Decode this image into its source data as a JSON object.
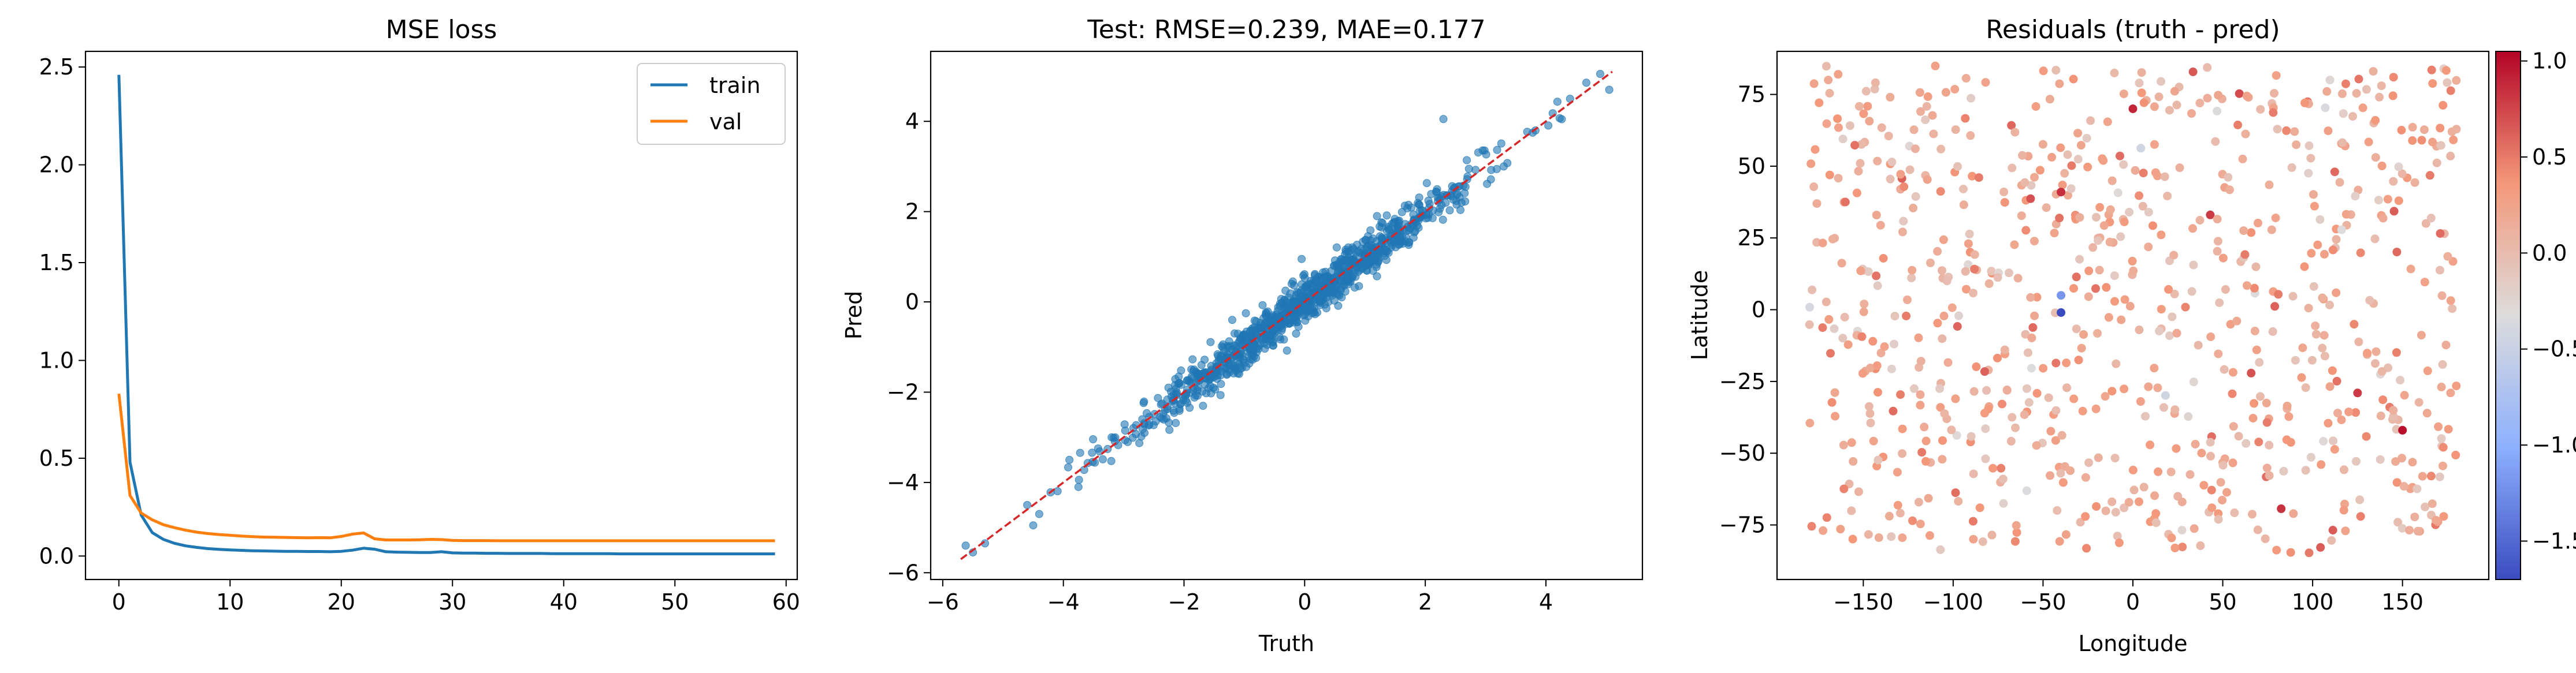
{
  "colors": {
    "train": "#1f77b4",
    "val": "#ff7f0e",
    "scatter": "#1f77b4",
    "identity_line": "#d62728",
    "colormap": "coolwarm"
  },
  "chart_data": [
    {
      "type": "line",
      "title": "MSE loss",
      "xlabel": "",
      "ylabel": "",
      "xlim": [
        -3,
        61
      ],
      "ylim": [
        -0.12,
        2.58
      ],
      "xticks": [
        "0",
        "10",
        "20",
        "30",
        "40",
        "50",
        "60"
      ],
      "yticks": [
        "0.0",
        "0.5",
        "1.0",
        "1.5",
        "2.0",
        "2.5"
      ],
      "legend_position": "top-right",
      "x": [
        0,
        1,
        2,
        3,
        4,
        5,
        6,
        7,
        8,
        9,
        10,
        11,
        12,
        13,
        14,
        15,
        16,
        17,
        18,
        19,
        20,
        21,
        22,
        23,
        24,
        25,
        26,
        27,
        28,
        29,
        30,
        31,
        32,
        33,
        34,
        35,
        36,
        37,
        38,
        39,
        40,
        41,
        42,
        43,
        44,
        45,
        46,
        47,
        48,
        49,
        50,
        51,
        52,
        53,
        54,
        55,
        56,
        57,
        58,
        59
      ],
      "series": [
        {
          "name": "train",
          "values": [
            2.46,
            0.48,
            0.21,
            0.12,
            0.085,
            0.065,
            0.052,
            0.044,
            0.038,
            0.034,
            0.031,
            0.029,
            0.027,
            0.026,
            0.025,
            0.024,
            0.024,
            0.023,
            0.023,
            0.022,
            0.024,
            0.03,
            0.04,
            0.035,
            0.022,
            0.02,
            0.019,
            0.018,
            0.018,
            0.022,
            0.016,
            0.015,
            0.015,
            0.014,
            0.014,
            0.013,
            0.013,
            0.013,
            0.013,
            0.012,
            0.012,
            0.012,
            0.012,
            0.012,
            0.012,
            0.011,
            0.011,
            0.011,
            0.011,
            0.011,
            0.011,
            0.011,
            0.011,
            0.011,
            0.011,
            0.011,
            0.011,
            0.011,
            0.011,
            0.011
          ]
        },
        {
          "name": "val",
          "values": [
            0.83,
            0.31,
            0.22,
            0.185,
            0.16,
            0.145,
            0.132,
            0.122,
            0.115,
            0.11,
            0.106,
            0.102,
            0.099,
            0.097,
            0.096,
            0.095,
            0.094,
            0.093,
            0.094,
            0.093,
            0.1,
            0.112,
            0.118,
            0.088,
            0.082,
            0.082,
            0.082,
            0.083,
            0.085,
            0.084,
            0.08,
            0.079,
            0.079,
            0.079,
            0.078,
            0.078,
            0.078,
            0.078,
            0.078,
            0.078,
            0.078,
            0.078,
            0.078,
            0.078,
            0.078,
            0.078,
            0.078,
            0.078,
            0.078,
            0.078,
            0.078,
            0.078,
            0.078,
            0.078,
            0.078,
            0.078,
            0.078,
            0.078,
            0.078,
            0.078
          ]
        }
      ]
    },
    {
      "type": "scatter",
      "title": "Test: RMSE=0.239, MAE=0.177",
      "xlabel": "Truth",
      "ylabel": "Pred",
      "xlim": [
        -6.2,
        5.6
      ],
      "ylim": [
        -6.15,
        5.55
      ],
      "xticks": [
        "−6",
        "−4",
        "−2",
        "0",
        "2",
        "4"
      ],
      "yticks": [
        "−6",
        "−4",
        "−2",
        "0",
        "2",
        "4"
      ],
      "identity_line": [
        [
          -5.7,
          -5.7
        ],
        [
          5.1,
          5.1
        ]
      ],
      "n_points": 1000,
      "rmse": 0.239,
      "points": [
        [
          -5.62,
          -5.4
        ],
        [
          -5.5,
          -5.55
        ],
        [
          -5.3,
          -5.35
        ],
        [
          -4.6,
          -4.5
        ],
        [
          -4.5,
          -4.95
        ],
        [
          -4.4,
          -4.7
        ],
        [
          -3.9,
          -3.5
        ],
        [
          -3.75,
          -4.1
        ],
        [
          -3.2,
          -3.0
        ],
        [
          2.3,
          4.05
        ],
        [
          2.6,
          2.2
        ],
        [
          3.3,
          3.0
        ],
        [
          4.9,
          5.05
        ],
        [
          5.05,
          4.7
        ],
        [
          4.4,
          4.5
        ],
        [
          -0.05,
          0.95
        ],
        [
          0.9,
          0.35
        ],
        [
          -1.2,
          -0.4
        ],
        [
          1.2,
          1.9
        ]
      ]
    },
    {
      "type": "scatter",
      "title": "Residuals (truth - pred)",
      "xlabel": "Longitude",
      "ylabel": "Latitude",
      "xlim": [
        -198,
        198
      ],
      "ylim": [
        -94,
        90
      ],
      "xticks": [
        "−150",
        "−100",
        "−50",
        "0",
        "50",
        "100",
        "150"
      ],
      "yticks": [
        "−75",
        "−50",
        "−25",
        "0",
        "25",
        "50",
        "75"
      ],
      "colorbar": {
        "min": -1.7,
        "max": 1.05,
        "ticks": [
          "1.0",
          "0.5",
          "0.0",
          "−0.5",
          "−1.0",
          "−1.5"
        ]
      },
      "n_points": 800,
      "notable_points": [
        [
          -40,
          -1,
          -1.7
        ],
        [
          -40,
          5,
          -1.2
        ],
        [
          -40,
          41,
          0.85
        ],
        [
          0,
          70,
          0.9
        ],
        [
          125,
          -29,
          0.8
        ],
        [
          150,
          -42,
          1.0
        ]
      ]
    }
  ]
}
